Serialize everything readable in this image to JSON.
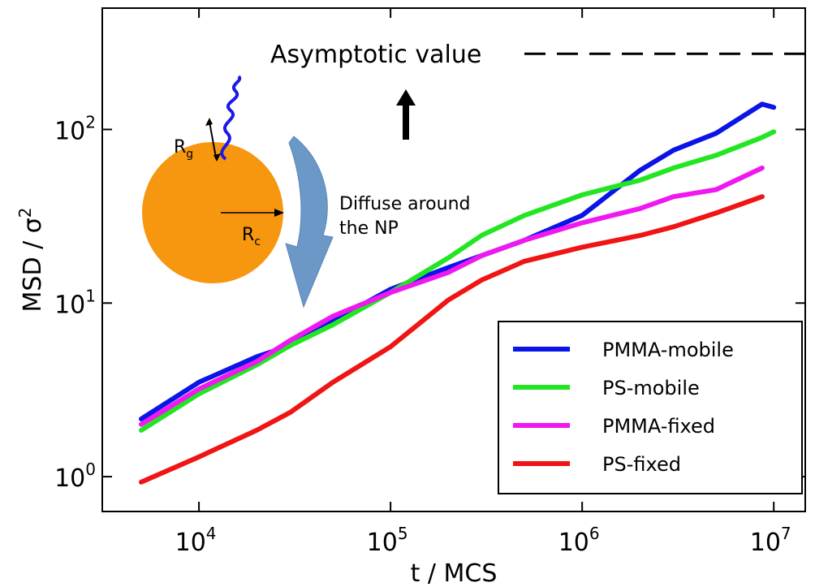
{
  "chart_data": {
    "type": "line",
    "xlabel": "t / MCS",
    "ylabel": "MSD / σ",
    "ylabel_sup": "2",
    "xscale": "log",
    "yscale": "log",
    "xlim": [
      3130,
      14600000
    ],
    "ylim": [
      0.63,
      500
    ],
    "xticks": [
      {
        "value": 10000,
        "label": "10",
        "exponent": "4"
      },
      {
        "value": 100000,
        "label": "10",
        "exponent": "5"
      },
      {
        "value": 1000000,
        "label": "10",
        "exponent": "6"
      },
      {
        "value": 10000000,
        "label": "10",
        "exponent": "7"
      }
    ],
    "yticks": [
      {
        "value": 1,
        "label": "10",
        "exponent": "0"
      },
      {
        "value": 10,
        "label": "10",
        "exponent": "1"
      },
      {
        "value": 100,
        "label": "10",
        "exponent": "2"
      }
    ],
    "legend": "lower right",
    "x": [
      5000,
      10000,
      20000,
      30000,
      50000,
      100000,
      200000,
      300000,
      500000,
      1000000,
      2000000,
      3000000,
      5000000,
      8700000,
      10000000
    ],
    "series": [
      {
        "name": "PMMA-mobile",
        "color": "#0a14e6",
        "values": [
          2.15,
          3.5,
          4.9,
          5.7,
          7.9,
          12,
          16,
          18.8,
          23,
          32,
          58,
          76,
          95,
          140,
          134
        ]
      },
      {
        "name": "PS-mobile",
        "color": "#22e622",
        "values": [
          1.85,
          3.0,
          4.4,
          5.7,
          7.5,
          11.5,
          18.2,
          24.6,
          32,
          42,
          51,
          60,
          71,
          90,
          97
        ]
      },
      {
        "name": "PMMA-fixed",
        "color": "#f018f0",
        "values": [
          2.0,
          3.2,
          4.6,
          6.1,
          8.4,
          11.5,
          15,
          18.8,
          23,
          29,
          35,
          41,
          45,
          60,
          null
        ]
      },
      {
        "name": "PS-fixed",
        "color": "#f01414",
        "values": [
          0.93,
          1.3,
          1.85,
          2.35,
          3.5,
          5.6,
          10.4,
          13.6,
          17.4,
          21,
          24.5,
          27.5,
          33,
          41,
          null
        ]
      }
    ],
    "asymptote": {
      "label": "Asymptotic value",
      "value": 273
    },
    "inset": {
      "rg": {
        "label": "R",
        "sub": "g"
      },
      "rc": {
        "label": "R",
        "sub": "c"
      },
      "diffuse": [
        "Diffuse around",
        "the NP"
      ]
    }
  }
}
